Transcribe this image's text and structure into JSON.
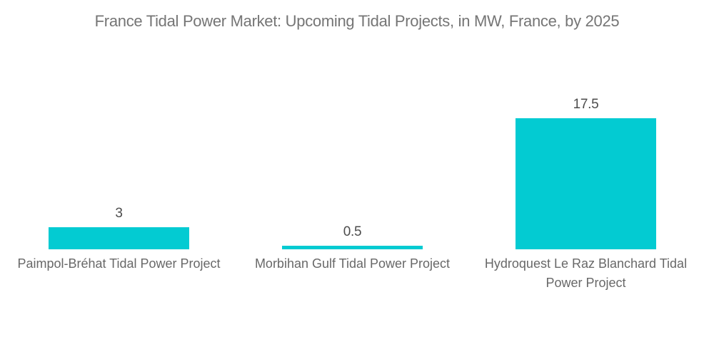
{
  "title": "France Tidal Power Market: Upcoming Tidal Projects, in MW, France, by 2025",
  "chart_data": {
    "type": "bar",
    "title": "France Tidal Power Market: Upcoming Tidal Projects, in MW, France, by 2025",
    "unit": "MW",
    "categories": [
      "Paimpol-Bréhat Tidal Power Project",
      "Morbihan Gulf Tidal Power Project",
      "Hydroquest Le Raz Blanchard Tidal Power Project"
    ],
    "values": [
      3,
      0.5,
      17.5
    ],
    "value_labels": [
      "3",
      "0.5",
      "17.5"
    ],
    "xlabel": "",
    "ylabel": "",
    "ylim": [
      0,
      17.5
    ],
    "grid": false,
    "axes_visible": false,
    "legend": "none",
    "bar_color": "#03cbd2",
    "title_color": "#757575",
    "value_label_color": "#4c4c4c",
    "category_label_color": "#686868",
    "background_color": "#ffffff"
  }
}
